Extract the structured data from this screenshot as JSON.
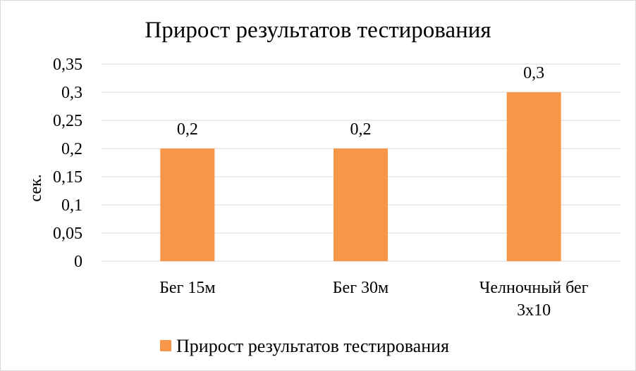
{
  "chart_data": {
    "type": "bar",
    "title": "Прирост результатов тестирования",
    "xlabel": "",
    "ylabel": "сек.",
    "categories": [
      "Бег 15м",
      "Бег 30м",
      "Челночный бег 3х10"
    ],
    "series": [
      {
        "name": "Прирост результатов тестирования",
        "values": [
          0.2,
          0.2,
          0.3
        ],
        "data_labels": [
          "0,2",
          "0,2",
          "0,3"
        ],
        "color": "#F79646"
      }
    ],
    "ylim": [
      0,
      0.35
    ],
    "yticks": [
      0,
      0.05,
      0.1,
      0.15,
      0.2,
      0.25,
      0.3,
      0.35
    ],
    "ytick_labels": [
      "0",
      "0,05",
      "0,1",
      "0,15",
      "0,2",
      "0,25",
      "0,3",
      "0,35"
    ],
    "grid": true,
    "legend_position": "bottom",
    "colors": {
      "bar": "#F79646",
      "grid": "#d9d9d9",
      "text": "#000000"
    }
  }
}
